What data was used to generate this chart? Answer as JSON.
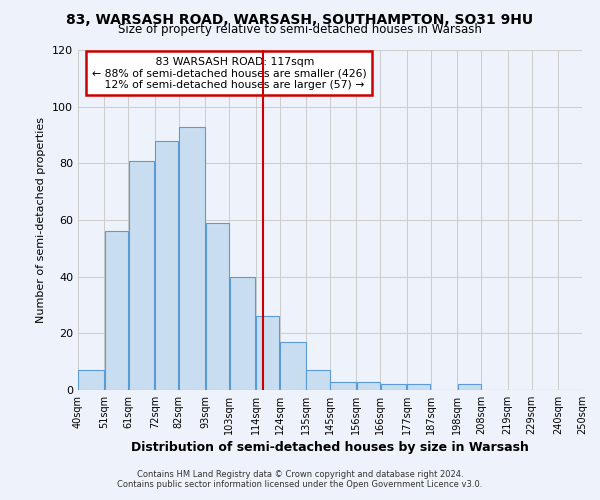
{
  "title": "83, WARSASH ROAD, WARSASH, SOUTHAMPTON, SO31 9HU",
  "subtitle": "Size of property relative to semi-detached houses in Warsash",
  "xlabel": "Distribution of semi-detached houses by size in Warsash",
  "ylabel": "Number of semi-detached properties",
  "bin_edges": [
    40,
    51,
    61,
    72,
    82,
    93,
    103,
    114,
    124,
    135,
    145,
    156,
    166,
    177,
    187,
    198,
    208,
    219,
    229,
    240,
    250
  ],
  "bin_labels": [
    "40sqm",
    "51sqm",
    "61sqm",
    "72sqm",
    "82sqm",
    "93sqm",
    "103sqm",
    "114sqm",
    "124sqm",
    "135sqm",
    "145sqm",
    "156sqm",
    "166sqm",
    "177sqm",
    "187sqm",
    "198sqm",
    "208sqm",
    "219sqm",
    "229sqm",
    "240sqm",
    "250sqm"
  ],
  "counts": [
    7,
    56,
    81,
    88,
    93,
    59,
    40,
    26,
    17,
    7,
    3,
    3,
    2,
    2,
    0,
    2,
    0,
    0,
    0,
    0
  ],
  "property_size": 117,
  "property_label": "83 WARSASH ROAD: 117sqm",
  "pct_smaller": 88,
  "pct_larger": 12,
  "n_smaller": 426,
  "n_larger": 57,
  "bar_facecolor": "#c9ddf0",
  "bar_edgecolor": "#5b9bd5",
  "vline_color": "#cc0000",
  "box_edgecolor": "#cc0000",
  "grid_color": "#cccccc",
  "bg_color": "#eef2fa",
  "footer_line1": "Contains HM Land Registry data © Crown copyright and database right 2024.",
  "footer_line2": "Contains public sector information licensed under the Open Government Licence v3.0.",
  "ylim": [
    0,
    120
  ]
}
